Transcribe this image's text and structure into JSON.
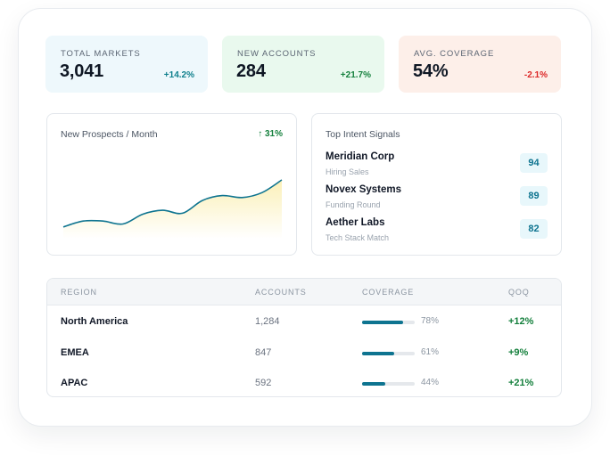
{
  "kpis": [
    {
      "label": "TOTAL MARKETS",
      "value": "3,041",
      "delta": "+14.2%",
      "bg": "#eef8fc",
      "delta_color": "#0e7f8c"
    },
    {
      "label": "NEW ACCOUNTS",
      "value": "284",
      "delta": "+21.7%",
      "bg": "#e9f9ee",
      "delta_color": "#15803d"
    },
    {
      "label": "AVG. COVERAGE",
      "value": "54%",
      "delta": "-2.1%",
      "bg": "#fdefe9",
      "delta_color": "#dc2626"
    }
  ],
  "prospects": {
    "title": "New Prospects / Month",
    "delta": "↑ 31%",
    "delta_color": "#15803d",
    "line_color": "#0e7490",
    "fill_color": "#fbf0b8",
    "chart_data": {
      "type": "area",
      "x": [
        1,
        2,
        3,
        4,
        5,
        6,
        7,
        8,
        9,
        10,
        11,
        12
      ],
      "values": [
        12,
        18,
        18,
        15,
        25,
        29,
        26,
        39,
        44,
        42,
        47,
        60
      ],
      "ylim": [
        0,
        100
      ],
      "grid": false,
      "axes_visible": false
    }
  },
  "signals": {
    "title": "Top Intent Signals",
    "items": [
      {
        "name": "Meridian Corp",
        "sub": "Hiring Sales",
        "score": "94"
      },
      {
        "name": "Novex Systems",
        "sub": "Funding Round",
        "score": "89"
      },
      {
        "name": "Aether Labs",
        "sub": "Tech Stack Match",
        "score": "82"
      }
    ],
    "score_bg": "#e8f7fb",
    "score_color": "#0e7490"
  },
  "table": {
    "headers": {
      "region": "REGION",
      "accounts": "ACCOUNTS",
      "coverage": "COVERAGE",
      "qoq": "QOQ"
    },
    "rows": [
      {
        "region": "North America",
        "accounts": "1,284",
        "coverage_pct": 78,
        "coverage": "78%",
        "qoq": "+12%"
      },
      {
        "region": "EMEA",
        "accounts": "847",
        "coverage_pct": 61,
        "coverage": "61%",
        "qoq": "+9%"
      },
      {
        "region": "APAC",
        "accounts": "592",
        "coverage_pct": 44,
        "coverage": "44%",
        "qoq": "+21%"
      }
    ],
    "bar_color": "#0e7490",
    "qoq_color": "#15803d"
  }
}
